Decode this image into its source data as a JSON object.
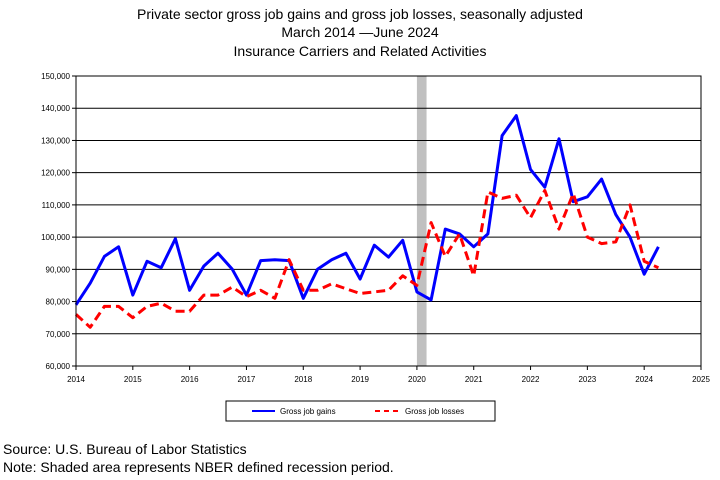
{
  "titles": {
    "line1": "Private sector gross job gains and gross job losses, seasonally adjusted",
    "line2": "March 2014 —June 2024",
    "line3": "Insurance Carriers and Related Activities"
  },
  "notes": {
    "source": "Source: U.S. Bureau of Labor Statistics",
    "shading": "Note: Shaded area represents NBER defined recession period."
  },
  "chart_data": {
    "type": "line",
    "title": "Private sector gross job gains and gross job losses, seasonally adjusted",
    "xlabel": "",
    "ylabel": "",
    "xlim": [
      2014,
      2025
    ],
    "ylim": [
      60000,
      150000
    ],
    "x_ticks": [
      "2014",
      "2015",
      "2016",
      "2017",
      "2018",
      "2019",
      "2020",
      "2021",
      "2022",
      "2023",
      "2024",
      "2025"
    ],
    "y_ticks": [
      "60,000",
      "70,000",
      "80,000",
      "90,000",
      "100,000",
      "110,000",
      "120,000",
      "130,000",
      "140,000",
      "150,000"
    ],
    "grid": "horizontal",
    "legend_position": "bottom",
    "recession_band": [
      2020.0,
      2020.17
    ],
    "x": [
      2014.0,
      2014.25,
      2014.5,
      2014.75,
      2015.0,
      2015.25,
      2015.5,
      2015.75,
      2016.0,
      2016.25,
      2016.5,
      2016.75,
      2017.0,
      2017.25,
      2017.5,
      2017.75,
      2018.0,
      2018.25,
      2018.5,
      2018.75,
      2019.0,
      2019.25,
      2019.5,
      2019.75,
      2020.0,
      2020.25,
      2020.5,
      2020.75,
      2021.0,
      2021.25,
      2021.5,
      2021.75,
      2022.0,
      2022.25,
      2022.5,
      2022.75,
      2023.0,
      2023.25,
      2023.5,
      2023.75,
      2024.0,
      2024.25
    ],
    "series": [
      {
        "name": "Gross job gains",
        "color": "#0000ff",
        "style": "solid",
        "values": [
          79000,
          85700,
          94000,
          97000,
          82000,
          92500,
          90500,
          99500,
          83500,
          91000,
          95000,
          90000,
          82000,
          92700,
          93000,
          92700,
          81000,
          90000,
          93000,
          95000,
          87000,
          97500,
          93800,
          99000,
          83000,
          80500,
          102500,
          101000,
          97000,
          101000,
          131500,
          137700,
          121000,
          115500,
          130500,
          111000,
          112500,
          118000,
          107000,
          100000,
          88500,
          97000
        ]
      },
      {
        "name": "Gross job losses",
        "color": "#ff0000",
        "style": "dashed",
        "values": [
          76000,
          72000,
          78500,
          78500,
          75000,
          78500,
          79500,
          77000,
          77000,
          82000,
          82000,
          84500,
          81500,
          83500,
          81000,
          93000,
          83500,
          83500,
          85500,
          84000,
          82500,
          83000,
          83500,
          88000,
          85000,
          104500,
          94000,
          101000,
          88000,
          114000,
          112000,
          113000,
          106000,
          114500,
          102500,
          113500,
          100000,
          98000,
          98500,
          110000,
          92500,
          90500
        ]
      }
    ]
  }
}
